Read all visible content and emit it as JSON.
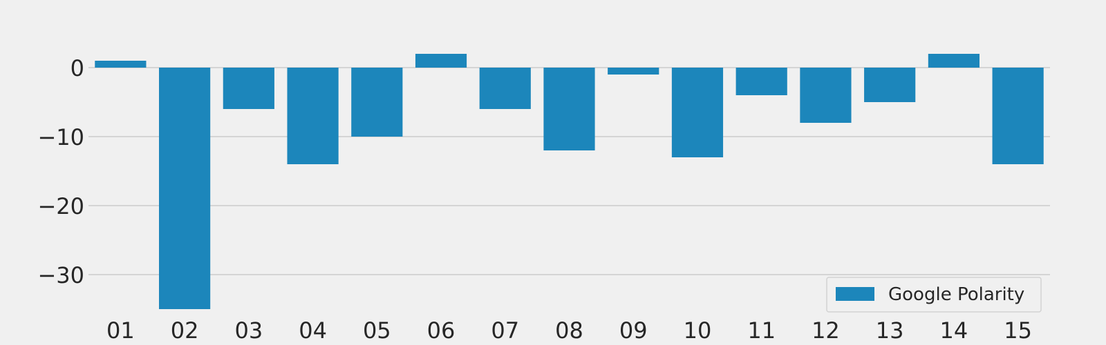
{
  "chart_data": {
    "type": "bar",
    "categories": [
      "01",
      "02",
      "03",
      "04",
      "05",
      "06",
      "07",
      "08",
      "09",
      "10",
      "11",
      "12",
      "13",
      "14",
      "15"
    ],
    "series": [
      {
        "name": "Google Polarity",
        "values": [
          1,
          -35,
          -6,
          -14,
          -10,
          2,
          -6,
          -12,
          -1,
          -13,
          -4,
          -8,
          -5,
          2,
          -14
        ],
        "color": "#1c86bb"
      }
    ],
    "title": "",
    "xlabel": "",
    "ylabel": "",
    "ylim": [
      -35.5,
      8
    ],
    "yticks": [
      0,
      -10,
      -20,
      -30
    ],
    "ytick_labels": [
      "0",
      "−10",
      "−20",
      "−30"
    ],
    "grid": "horizontal",
    "legend": "bottom-right",
    "colors": {
      "background": "#f0f0f0",
      "grid": "#cbcbcb",
      "text": "#262626"
    }
  }
}
